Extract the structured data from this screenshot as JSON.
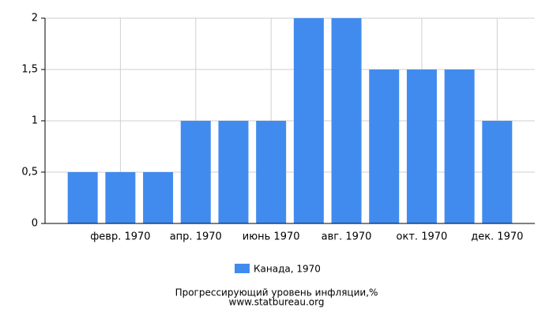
{
  "chart_data": {
    "type": "bar",
    "categories": [
      null,
      "февр. 1970",
      null,
      "апр. 1970",
      null,
      "июнь 1970",
      null,
      "авг. 1970",
      null,
      "окт. 1970",
      null,
      "дек. 1970"
    ],
    "series": [
      {
        "name": "Канада, 1970",
        "color": "#428bee",
        "values": [
          0.5,
          0.5,
          0.5,
          1,
          1,
          1,
          2,
          2,
          1.5,
          1.5,
          1.5,
          1
        ]
      }
    ],
    "ylim": [
      0,
      2
    ],
    "yticks": [
      0,
      {
        "value": 0.5,
        "label": "0,5"
      },
      1,
      {
        "value": 1.5,
        "label": "1,5"
      },
      2
    ],
    "grid": true,
    "legend": "bottom",
    "title": "Прогрессирующий уровень инфляции,%",
    "source": "www.statbureau.org"
  }
}
